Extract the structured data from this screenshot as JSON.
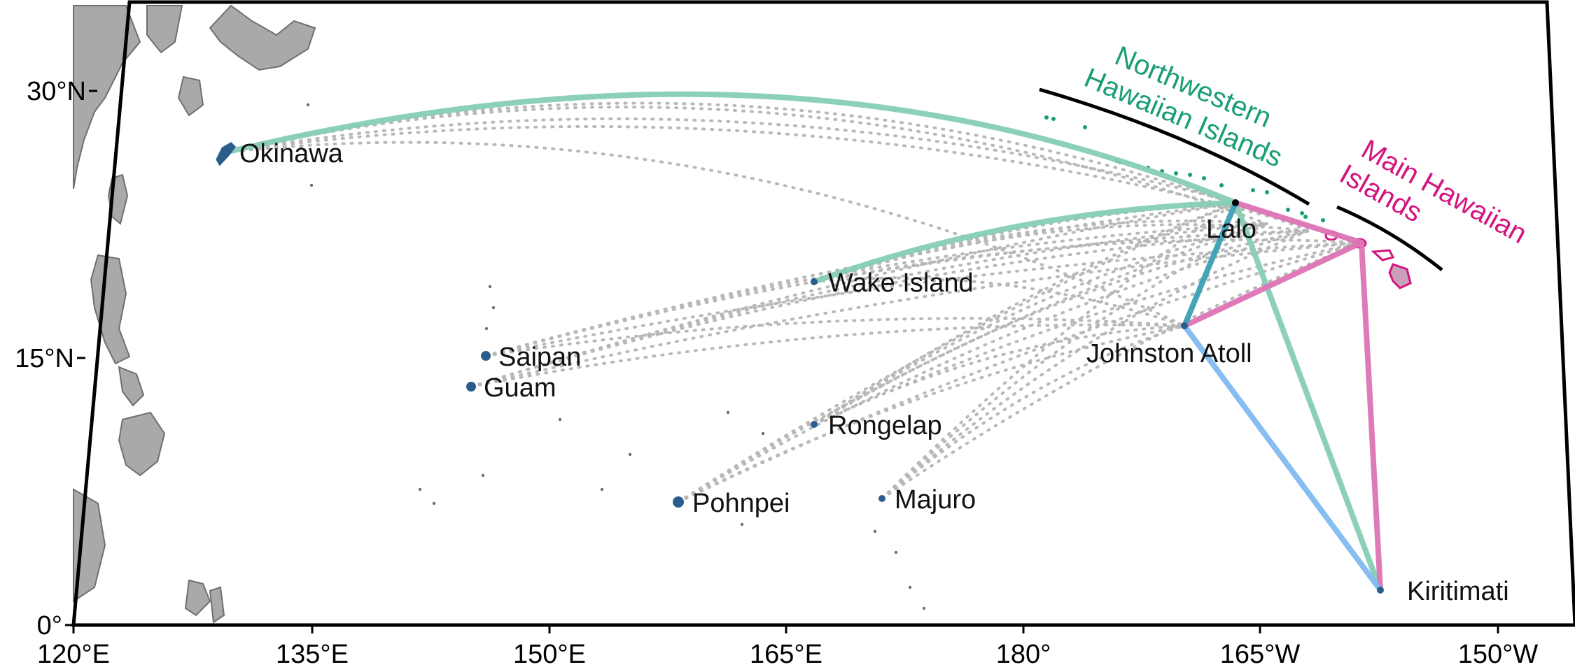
{
  "map": {
    "lon_range": [
      120,
      200
    ],
    "lat_range": [
      0,
      34
    ],
    "grid": false,
    "colors": {
      "frame": "#000000",
      "land": "#a9a9a9",
      "land_outline": "#6f6f6f",
      "site": "#2b5d8c",
      "nwhi": "#1a9e77",
      "mhi": "#d4147f",
      "path_nwhi": "#86cdb5",
      "path_mhi": "#dd73b5",
      "path_johnston_lalo": "#3c9fb5",
      "path_johnston_kiritimati": "#7fbbf0",
      "dotted_path": "#b8b8b8"
    },
    "x_ticks": [
      {
        "label": "120°E",
        "lon": 120
      },
      {
        "label": "135°E",
        "lon": 135
      },
      {
        "label": "150°E",
        "lon": 150
      },
      {
        "label": "165°E",
        "lon": 165
      },
      {
        "label": "180°",
        "lon": 180
      },
      {
        "label": "165°W",
        "lon": 195
      },
      {
        "label": "150°W",
        "lon": 210
      }
    ],
    "y_ticks": [
      {
        "label": "0°",
        "lat": 0
      },
      {
        "label": "15°N",
        "lat": 15
      },
      {
        "label": "30°N",
        "lat": 30
      }
    ],
    "regions": [
      {
        "id": "nwhi",
        "lines": [
          "Northwestern",
          "Hawaiian Islands"
        ],
        "color_key": "nwhi"
      },
      {
        "id": "mhi",
        "lines": [
          "Main Hawaiian",
          "Islands"
        ],
        "color_key": "mhi"
      }
    ],
    "sites": [
      {
        "id": "okinawa",
        "name": "Okinawa",
        "lon": 128.0,
        "lat": 26.5
      },
      {
        "id": "saipan",
        "name": "Saipan",
        "lon": 145.7,
        "lat": 15.2
      },
      {
        "id": "guam",
        "name": "Guam",
        "lon": 144.8,
        "lat": 13.4
      },
      {
        "id": "wake",
        "name": "Wake Island",
        "lon": 166.6,
        "lat": 19.3
      },
      {
        "id": "rongelap",
        "name": "Rongelap",
        "lon": 166.8,
        "lat": 11.2
      },
      {
        "id": "pohnpei",
        "name": "Pohnpei",
        "lon": 158.2,
        "lat": 6.9
      },
      {
        "id": "majuro",
        "name": "Majuro",
        "lon": 171.2,
        "lat": 7.1
      },
      {
        "id": "lalo",
        "name": "Lalo",
        "lon": 193.4,
        "lat": 23.9
      },
      {
        "id": "johnston",
        "name": "Johnston Atoll",
        "lon": 190.5,
        "lat": 16.8
      },
      {
        "id": "kiritimati",
        "name": "Kiritimati",
        "lon": 202.6,
        "lat": 1.9
      }
    ]
  }
}
